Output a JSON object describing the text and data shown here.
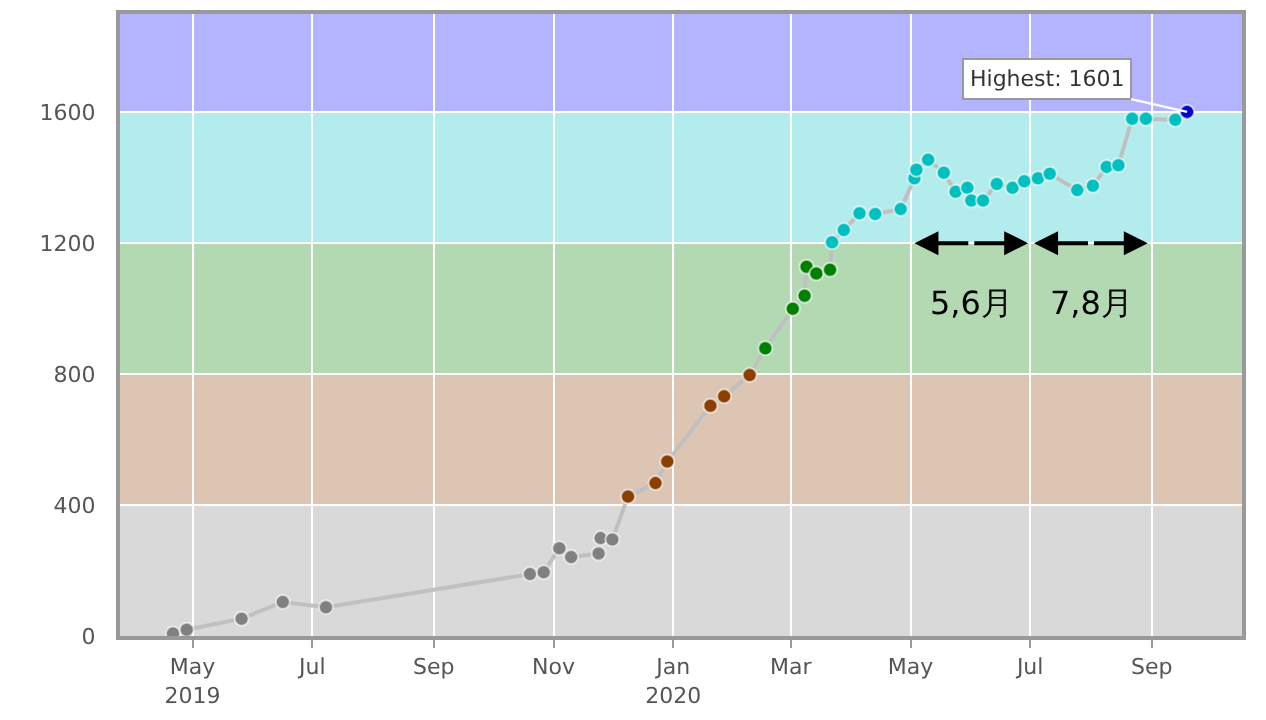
{
  "chart_data": {
    "type": "line",
    "x": [
      "2019-04-21",
      "2019-04-28",
      "2019-05-26",
      "2019-06-16",
      "2019-07-08",
      "2019-10-20",
      "2019-10-27",
      "2019-11-04",
      "2019-11-10",
      "2019-11-24",
      "2019-11-25",
      "2019-12-01",
      "2019-12-09",
      "2019-12-23",
      "2019-12-29",
      "2020-01-20",
      "2020-01-27",
      "2020-02-09",
      "2020-02-17",
      "2020-03-02",
      "2020-03-08",
      "2020-03-09",
      "2020-03-14",
      "2020-03-21",
      "2020-03-22",
      "2020-03-28",
      "2020-04-05",
      "2020-04-13",
      "2020-04-26",
      "2020-05-03",
      "2020-05-04",
      "2020-05-10",
      "2020-05-18",
      "2020-05-24",
      "2020-05-30",
      "2020-06-01",
      "2020-06-07",
      "2020-06-14",
      "2020-06-22",
      "2020-06-28",
      "2020-07-05",
      "2020-07-11",
      "2020-07-25",
      "2020-08-02",
      "2020-08-09",
      "2020-08-15",
      "2020-08-22",
      "2020-08-29",
      "2020-09-13",
      "2020-09-19"
    ],
    "series": [
      {
        "color": "#c0c0c0",
        "values": [
          8,
          19,
          53,
          104,
          88,
          189,
          195,
          268,
          241,
          252,
          299,
          295,
          426,
          467,
          533,
          703,
          732,
          797,
          879,
          1000,
          1039,
          1128,
          1107,
          1119,
          1203,
          1240,
          1291,
          1289,
          1304,
          1398,
          1424,
          1455,
          1415,
          1357,
          1369,
          1330,
          1330,
          1381,
          1369,
          1389,
          1398,
          1412,
          1362,
          1375,
          1433,
          1438,
          1580,
          1580,
          1577,
          1601
        ],
        "colors": [
          "#808080",
          "#808080",
          "#808080",
          "#808080",
          "#808080",
          "#808080",
          "#808080",
          "#808080",
          "#808080",
          "#808080",
          "#808080",
          "#808080",
          "#8b4000",
          "#8b4000",
          "#8b4000",
          "#8b4000",
          "#8b4000",
          "#8b4000",
          "#008000",
          "#008000",
          "#008000",
          "#008000",
          "#008000",
          "#008000",
          "#00bfbf",
          "#00bfbf",
          "#00bfbf",
          "#00bfbf",
          "#00bfbf",
          "#00bfbf",
          "#00bfbf",
          "#00bfbf",
          "#00bfbf",
          "#00bfbf",
          "#00bfbf",
          "#00bfbf",
          "#00bfbf",
          "#00bfbf",
          "#00bfbf",
          "#00bfbf",
          "#00bfbf",
          "#00bfbf",
          "#00bfbf",
          "#00bfbf",
          "#00bfbf",
          "#00bfbf",
          "#00bfbf",
          "#00bfbf",
          "#00bfbf",
          "#0000cc"
        ]
      }
    ],
    "xlim": [
      "2019-03-25",
      "2020-10-17"
    ],
    "xticks": [
      {
        "value": "2019-05-01",
        "label": "May\n2019"
      },
      {
        "value": "2019-07-01",
        "label": "Jul"
      },
      {
        "value": "2019-09-01",
        "label": "Sep"
      },
      {
        "value": "2019-11-01",
        "label": "Nov"
      },
      {
        "value": "2020-01-01",
        "label": "Jan\n2020"
      },
      {
        "value": "2020-03-01",
        "label": "Mar"
      },
      {
        "value": "2020-05-01",
        "label": "May"
      },
      {
        "value": "2020-07-01",
        "label": "Jul"
      },
      {
        "value": "2020-09-01",
        "label": "Sep"
      }
    ],
    "ylim": [
      0,
      1900
    ],
    "yticks": [
      0,
      400,
      800,
      1200,
      1600
    ],
    "bands": [
      {
        "axis": "y",
        "from": 0,
        "to": 400,
        "color": "#d9d9d9"
      },
      {
        "axis": "y",
        "from": 400,
        "to": 800,
        "color": "#dcc5b2"
      },
      {
        "axis": "y",
        "from": 800,
        "to": 1200,
        "color": "#b3d9b3"
      },
      {
        "axis": "y",
        "from": 1200,
        "to": 1600,
        "color": "#b3ecec"
      },
      {
        "axis": "y",
        "from": 1600,
        "to": 1900,
        "color": "#b3b3ff"
      }
    ],
    "annotations": [
      {
        "text": "Highest: 1601",
        "x": "2020-09-19",
        "y": 1601
      },
      {
        "text": "5,6月",
        "x": "2020-06-01",
        "y": 1200
      },
      {
        "text": "7,8月",
        "x": "2020-08-01",
        "y": 1200
      }
    ],
    "marker": "circle",
    "line_style": "solid",
    "grid": true
  }
}
